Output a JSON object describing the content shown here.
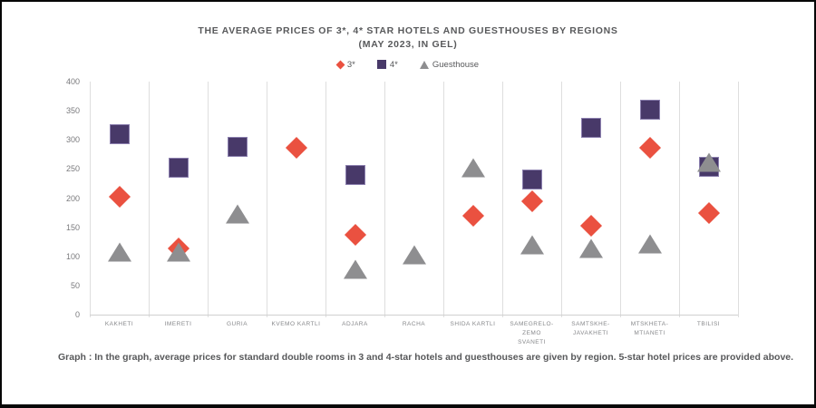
{
  "header": {
    "title": "THE AVERAGE PRICES OF 3*, 4* STAR HOTELS AND GUESTHOUSES BY REGIONS",
    "subtitle": "(MAY 2023, IN GEL)"
  },
  "caption": {
    "text": "Graph : In the graph, average prices for standard double rooms in 3 and 4-star hotels and guesthouses are given by region. 5-star hotel prices are provided above."
  },
  "colors": {
    "three_star": "#ea5140",
    "four_star": "#483969",
    "guesthouse": "#8e8e90",
    "text": "#58595b",
    "axis_labels": "#87888b",
    "gridline": "#dedede"
  },
  "chart_data": {
    "type": "scatter",
    "title": "THE AVERAGE PRICES OF 3*, 4* STAR HOTELS AND GUESTHOUSES BY REGIONS (MAY 2023, IN GEL)",
    "categories": [
      "KAKHETI",
      "IMERETI",
      "GURIA",
      "KVEMO KARTLI",
      "ADJARA",
      "RACHA",
      "SHIDA KARTLI",
      "SAMEGRELO-ZEMO SVANETI",
      "SAMTSKHE-JAVAKHETI",
      "MTSKHETA-MTIANETI",
      "TBILISI"
    ],
    "tick_labels": [
      "KAKHETI",
      "IMERETI",
      "GURIA",
      "KVEMO KARTLI",
      "ADJARA",
      "RACHA",
      "SHIDA KARTLI",
      "SAMEGRELO-ZEMO\nSVANETI",
      "SAMTSKHE-\nJAVAKHETI",
      "MTSKHETA-\nMTIANETI",
      "TBILISI"
    ],
    "series": [
      {
        "name": "3*",
        "marker": "diamond",
        "color": "#ea5140",
        "values": [
          202,
          114,
          null,
          287,
          137,
          null,
          170,
          195,
          152,
          287,
          175
        ]
      },
      {
        "name": "4*",
        "marker": "square",
        "color": "#483969",
        "values": [
          310,
          252,
          288,
          null,
          240,
          null,
          null,
          232,
          320,
          352,
          253
        ]
      },
      {
        "name": "Guesthouse",
        "marker": "triangle",
        "color": "#8e8e90",
        "values": [
          107,
          107,
          172,
          null,
          78,
          103,
          252,
          120,
          113,
          122,
          262
        ]
      }
    ],
    "ylabel": "",
    "xlabel": "",
    "ylim": [
      0,
      400
    ],
    "yticks": [
      0,
      50,
      100,
      150,
      200,
      250,
      300,
      350,
      400
    ],
    "grid": "vertical-category-separators-only",
    "legend_position": "top-center"
  }
}
